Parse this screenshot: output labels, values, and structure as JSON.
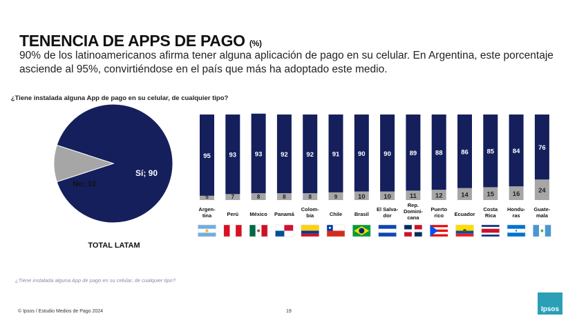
{
  "title": "TENENCIA DE APPS DE PAGO",
  "title_unit": "(%)",
  "subtitle": "90% de los latinoamericanos afirma tener alguna aplicación de pago en su celular. En Argentina, este porcentaje asciende al 95%, convirtiéndose en el país que más ha adoptado este medio.",
  "question_line1": "¿Tiene instalada alguna App de pago en su celular, de cualquier tipo?",
  "question_line2": "(%)",
  "pie_total_label": "TOTAL LATAM",
  "footnote": "¿Tiene instalada alguna App de pago en su celular, de cualquier tipo?",
  "source": "© Ipsos / Estudio Medios de Pago 2024",
  "page_number": "19",
  "logo_text": "Ipsos",
  "colors": {
    "navy": "#141f5c",
    "gray": "#a6a6a6",
    "logo": "#2a9fb6"
  },
  "chart_data": [
    {
      "type": "pie",
      "title": "TOTAL LATAM",
      "slices": [
        {
          "label": "Sí",
          "value": 90,
          "display": "Sí; 90",
          "color": "#141f5c"
        },
        {
          "label": "No",
          "value": 10,
          "display": "No; 10",
          "color": "#a6a6a6"
        }
      ]
    },
    {
      "type": "bar",
      "stacked": true,
      "categories": [
        "Argen-tina",
        "Perú",
        "México",
        "Panamá",
        "Colom-bia",
        "Chile",
        "Brasil",
        "El Salva-dor",
        "Rep. Domini-cana",
        "Puerto rico",
        "Ecuador",
        "Costa Rica",
        "Hondu-ras",
        "Guate-mala"
      ],
      "series": [
        {
          "name": "Sí",
          "color": "#141f5c",
          "values": [
            95,
            93,
            93,
            92,
            92,
            91,
            90,
            90,
            89,
            88,
            86,
            85,
            84,
            76
          ]
        },
        {
          "name": "No",
          "color": "#a6a6a6",
          "values": [
            5,
            7,
            8,
            8,
            8,
            9,
            10,
            10,
            11,
            12,
            14,
            15,
            16,
            24
          ]
        }
      ],
      "flags": [
        "argentina-flag",
        "peru-flag",
        "mexico-flag",
        "panama-flag",
        "colombia-flag",
        "chile-flag",
        "brazil-flag",
        "el-salvador-flag",
        "dominican-republic-flag",
        "puerto-rico-flag",
        "ecuador-flag",
        "costa-rica-flag",
        "honduras-flag",
        "guatemala-flag"
      ],
      "ylim": [
        0,
        100
      ]
    }
  ]
}
